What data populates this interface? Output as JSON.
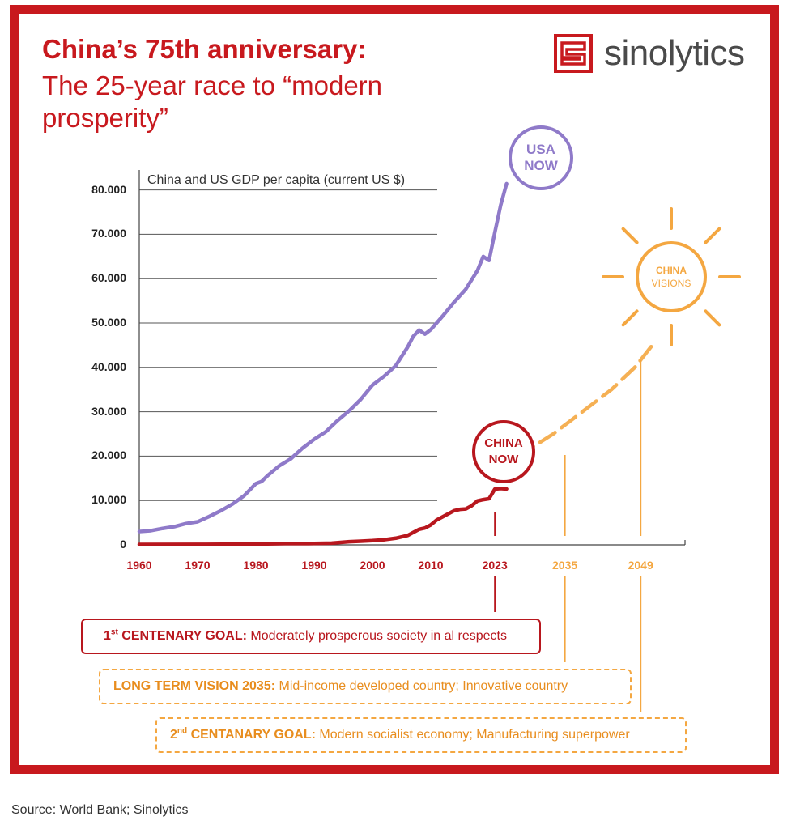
{
  "header": {
    "title": "China’s 75th anniversary:",
    "subtitle": "The 25-year race to “modern prosperity”"
  },
  "brand": {
    "name": "sinolytics",
    "icon": "sinolytics-logo-icon"
  },
  "colors": {
    "frame": "#c8191e",
    "usa": "#8f7ac9",
    "china": "#b8171e",
    "vision": "#f4a741"
  },
  "chart_data": {
    "type": "line",
    "title": "China and US GDP per capita (current US $)",
    "ylim": [
      0,
      80000
    ],
    "yticks": [
      "0",
      "10.000",
      "20.000",
      "30.000",
      "40.000",
      "50.000",
      "60.000",
      "70.000",
      "80.000"
    ],
    "ytick_values": [
      0,
      10000,
      20000,
      30000,
      40000,
      50000,
      60000,
      70000,
      80000
    ],
    "xticks": [
      {
        "label": "1960",
        "year": 1960,
        "color": "#b8171e"
      },
      {
        "label": "1970",
        "year": 1970,
        "color": "#b8171e"
      },
      {
        "label": "1980",
        "year": 1980,
        "color": "#b8171e"
      },
      {
        "label": "1990",
        "year": 1990,
        "color": "#b8171e"
      },
      {
        "label": "2000",
        "year": 2000,
        "color": "#b8171e"
      },
      {
        "label": "2010",
        "year": 2010,
        "color": "#b8171e"
      },
      {
        "label": "2023",
        "year": 2021,
        "color": "#b8171e"
      },
      {
        "label": "2035",
        "year": 2033,
        "color": "#f4a741"
      },
      {
        "label": "2049",
        "year": 2046,
        "color": "#f4a741"
      }
    ],
    "series": [
      {
        "id": "usa",
        "x": [
          1960,
          1962,
          1964,
          1966,
          1968,
          1970,
          1972,
          1974,
          1976,
          1978,
          1980,
          1981,
          1982,
          1984,
          1986,
          1988,
          1990,
          1992,
          1994,
          1996,
          1998,
          2000,
          2001,
          2002,
          2004,
          2006,
          2007,
          2008,
          2009,
          2010,
          2012,
          2014,
          2016,
          2018,
          2019,
          2020,
          2021,
          2022,
          2023
        ],
        "y": [
          3000,
          3200,
          3700,
          4100,
          4800,
          5200,
          6400,
          7700,
          9200,
          11100,
          13800,
          14300,
          15600,
          17800,
          19400,
          21800,
          23800,
          25500,
          28000,
          30200,
          32800,
          36000,
          37000,
          38000,
          40400,
          44500,
          47000,
          48400,
          47500,
          48500,
          51500,
          54700,
          57600,
          61800,
          65000,
          64100,
          70500,
          76600,
          81400
        ]
      },
      {
        "id": "china",
        "x": [
          1960,
          1970,
          1980,
          1985,
          1990,
          1993,
          1996,
          1998,
          2000,
          2002,
          2004,
          2006,
          2008,
          2009,
          2010,
          2011,
          2012,
          2013,
          2014,
          2015,
          2016,
          2017,
          2018,
          2019,
          2020,
          2021,
          2022,
          2023
        ],
        "y": [
          90,
          110,
          190,
          290,
          310,
          380,
          700,
          830,
          960,
          1150,
          1500,
          2100,
          3500,
          3800,
          4500,
          5600,
          6300,
          7000,
          7700,
          8000,
          8100,
          8800,
          9900,
          10200,
          10400,
          12600,
          12700,
          12600
        ]
      }
    ],
    "projection": {
      "x": [
        2025,
        2031,
        2036,
        2041,
        2045,
        2048
      ],
      "y": [
        20000,
        25000,
        30000,
        35000,
        40000,
        45000
      ]
    },
    "markers": [
      {
        "id": "usa-now",
        "line1": "USA",
        "line2": "NOW",
        "color": "#8f7ac9"
      },
      {
        "id": "china-now",
        "line1": "CHINA",
        "line2": "NOW",
        "color": "#b8171e"
      },
      {
        "id": "china-visions",
        "line1": "CHINA",
        "line2": "VISIONS",
        "color": "#f4a741"
      }
    ]
  },
  "goals": [
    {
      "sup": "st",
      "num": "1",
      "label": "CENTENARY GOAL:",
      "text": " Moderately prosperous society in al respects"
    },
    {
      "label": "LONG TERM VISION 2035:",
      "text": " Mid-income developed country; Innovative country"
    },
    {
      "sup": "nd",
      "num": "2",
      "label": "CENTANARY GOAL:",
      "text": " Modern socialist economy; Manufacturing superpower"
    }
  ],
  "source": "Source: World Bank; Sinolytics"
}
